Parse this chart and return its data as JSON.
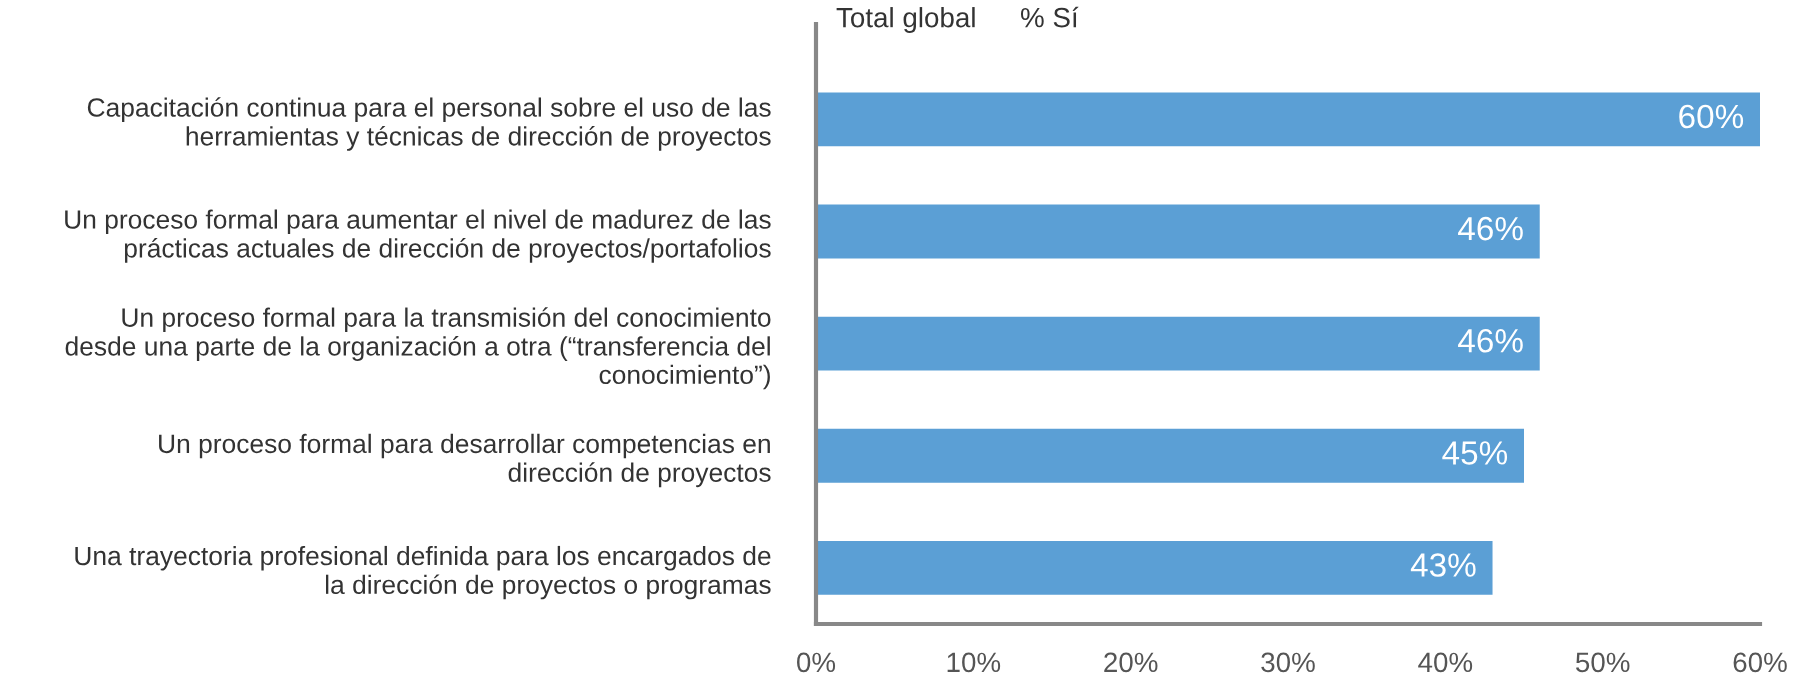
{
  "chart_data": {
    "type": "bar",
    "orientation": "horizontal",
    "title": "Total global",
    "subtitle": "% Sí",
    "categories": [
      "Capacitación continua para el personal sobre el uso de las\nherramientas y técnicas de dirección de proyectos",
      "Un proceso formal para aumentar el nivel de madurez de las\nprácticas actuales de dirección de proyectos/portafolios",
      "Un proceso formal para la transmisión del conocimiento\ndesde una parte de la organización a otra (“transferencia del\nconocimiento”)",
      "Un proceso formal para desarrollar competencias en\ndirección de proyectos",
      "Una trayectoria profesional definida para los encargados de\nla dirección de proyectos o programas"
    ],
    "values": [
      60,
      46,
      46,
      45,
      43
    ],
    "value_labels": [
      "60%",
      "46%",
      "46%",
      "45%",
      "43%"
    ],
    "color": "#5b9fd5",
    "xlim": [
      0,
      60
    ],
    "xticks": [
      {
        "value": 0,
        "label": "0%"
      },
      {
        "value": 10,
        "label": "10%"
      },
      {
        "value": 20,
        "label": "20%"
      },
      {
        "value": 30,
        "label": "30%"
      },
      {
        "value": 40,
        "label": "40%"
      },
      {
        "value": 50,
        "label": "50%"
      },
      {
        "value": 60,
        "label": "60%"
      }
    ],
    "grid": false
  }
}
